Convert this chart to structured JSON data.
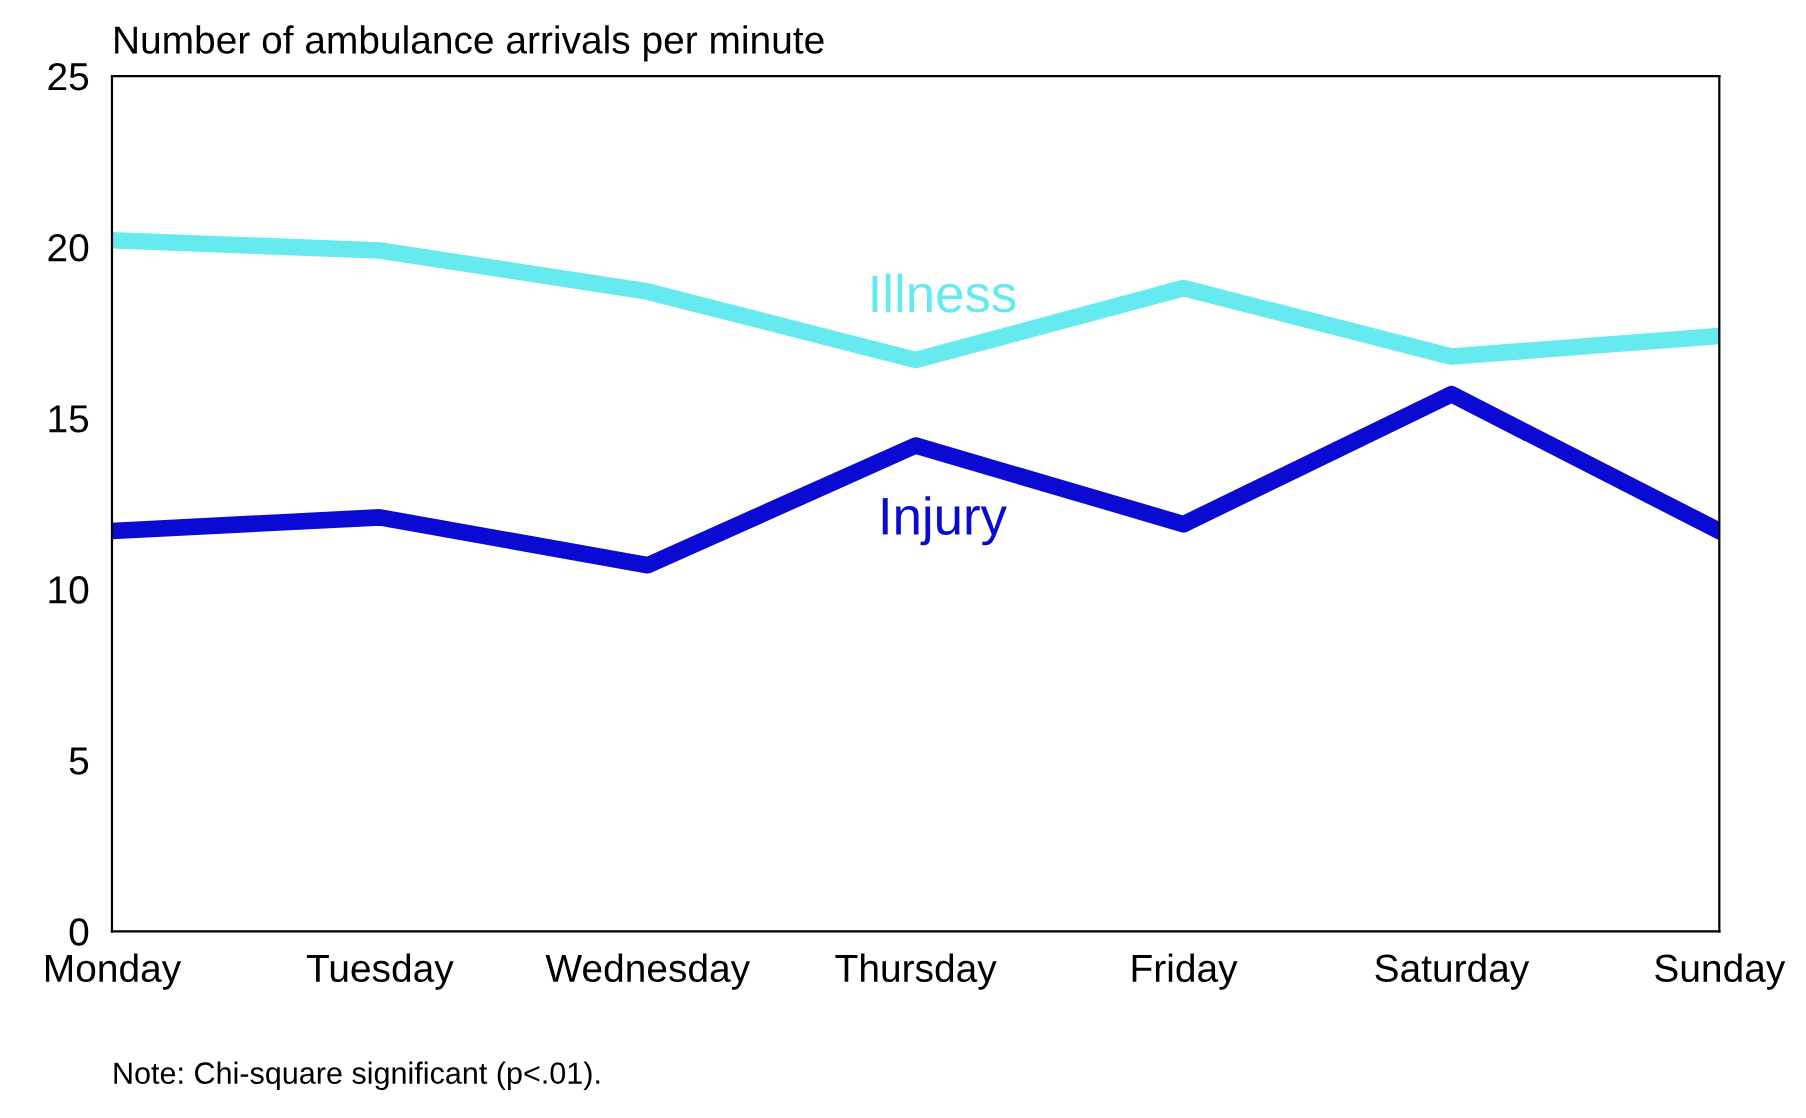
{
  "chart_data": {
    "type": "line",
    "title": "Number of ambulance arrivals per minute",
    "categories": [
      "Monday",
      "Tuesday",
      "Wednesday",
      "Thursday",
      "Friday",
      "Saturday",
      "Sunday"
    ],
    "series": [
      {
        "name": "Illness",
        "color": "#66eaf0",
        "values": [
          20.2,
          19.9,
          18.7,
          16.7,
          18.8,
          16.8,
          17.4
        ]
      },
      {
        "name": "Injury",
        "color": "#0a0ad2",
        "values": [
          11.7,
          12.1,
          10.7,
          14.2,
          11.9,
          15.7,
          11.7
        ]
      }
    ],
    "ylim": [
      0,
      25
    ],
    "yticks": [
      0,
      5,
      10,
      15,
      20,
      25
    ],
    "grid": false,
    "legend": false,
    "marker": "none",
    "line_style": "solid",
    "annotations": [
      "Note: Chi-square significant (p<.01)."
    ]
  }
}
